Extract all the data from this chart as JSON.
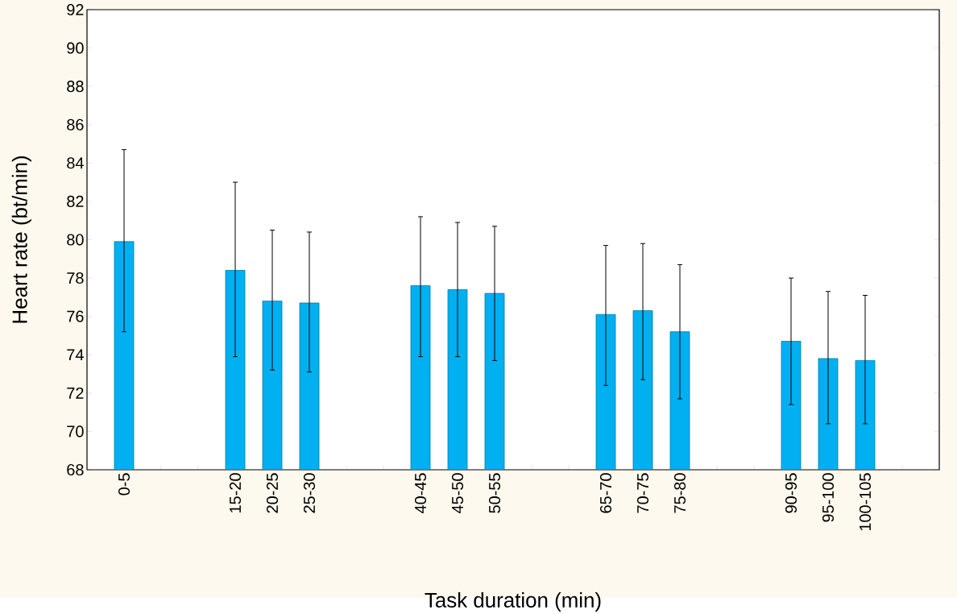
{
  "chart_data": {
    "type": "bar",
    "xlabel": "Task duration (min)",
    "ylabel": "Heart rate (bt/min)",
    "categories": [
      "0-5",
      null,
      null,
      "15-20",
      "20-25",
      "25-30",
      null,
      null,
      "40-45",
      "45-50",
      "50-55",
      null,
      null,
      "65-70",
      "70-75",
      "75-80",
      null,
      null,
      "90-95",
      "95-100",
      "100-105",
      null
    ],
    "values": [
      79.9,
      null,
      null,
      78.4,
      76.8,
      76.7,
      null,
      null,
      77.6,
      77.4,
      77.2,
      null,
      null,
      76.1,
      76.3,
      75.2,
      null,
      null,
      74.7,
      73.8,
      73.7,
      null
    ],
    "errors": [
      [
        75.2,
        84.7
      ],
      null,
      null,
      [
        73.9,
        83.0
      ],
      [
        73.2,
        80.5
      ],
      [
        73.1,
        80.4
      ],
      null,
      null,
      [
        73.9,
        81.2
      ],
      [
        73.9,
        80.9
      ],
      [
        73.7,
        80.7
      ],
      null,
      null,
      [
        72.4,
        79.7
      ],
      [
        72.7,
        79.8
      ],
      [
        71.7,
        78.7
      ],
      null,
      null,
      [
        71.4,
        78.0
      ],
      [
        70.4,
        77.3
      ],
      [
        70.4,
        77.1
      ],
      null
    ],
    "color": "#00b0f0",
    "ylim": [
      68,
      92
    ],
    "yticks": [
      68,
      70,
      72,
      74,
      76,
      78,
      80,
      82,
      84,
      86,
      88,
      90,
      92
    ],
    "grid": false
  }
}
